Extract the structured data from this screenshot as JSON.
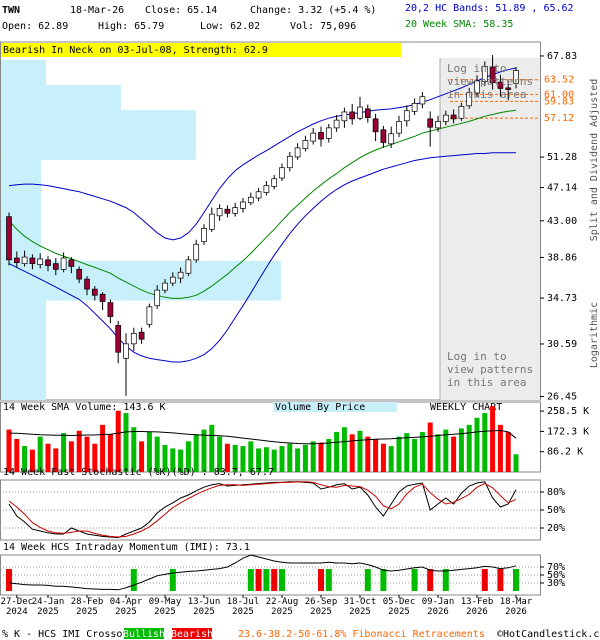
{
  "header": {
    "symbol": "TWN",
    "date": "18-Mar-26",
    "close": "Close: 65.14",
    "change": "Change: 3.32 (+5.4 %)",
    "open": "Open: 62.89",
    "high": "High: 65.79",
    "low": "Low: 62.02",
    "volume": "Vol: 75,096"
  },
  "footer": {
    "copyright": "©HotCandlestick.com"
  },
  "chart_data": [
    {
      "type": "candlestick",
      "title": "Bearish In Neck on 03-Jul-08, Strength: 62.9",
      "legend": [
        {
          "text": "20,2 HC Bands: 51.89 , 65.62",
          "color": "#0000cc"
        },
        {
          "text": "20 Week SMA: 58.35",
          "color": "#008800"
        }
      ],
      "notice": "Log in to\nview patterns\nin this area",
      "axis_notes": [
        "Split and Dividend Adjusted",
        "Logarithmic"
      ],
      "log": true,
      "ylim": [
        26.2,
        70.5
      ],
      "yticks": [
        67.83,
        51.28,
        47.14,
        {
          "value": 43,
          "label": "43.00"
        },
        38.86,
        34.73,
        30.59,
        26.45
      ],
      "fib_levels": [
        63.52,
        {
          "value": 61,
          "label": "61.00"
        },
        59.83,
        57.12
      ],
      "fib_color": "#ff6600",
      "fib_caption": "23.6-38.2-50-61.8% Fibonacci Retracements",
      "up_color": "#ffffff",
      "down_color": "#990033",
      "categories": [
        null,
        "27-Dec\n2024",
        null,
        null,
        null,
        "24-Jan\n2025",
        null,
        null,
        null,
        null,
        "28-Feb\n2025",
        null,
        null,
        null,
        null,
        "04-Apr\n2025",
        null,
        null,
        null,
        null,
        "09-May\n2025",
        null,
        null,
        null,
        null,
        "13-Jun\n2025",
        null,
        null,
        null,
        null,
        "18-Jul\n2025",
        null,
        null,
        null,
        null,
        "22-Aug\n2025",
        null,
        null,
        null,
        null,
        "26-Sep\n2025",
        null,
        null,
        null,
        null,
        "31-Oct\n2025",
        null,
        null,
        null,
        null,
        "05-Dec\n2025",
        null,
        null,
        null,
        null,
        "09-Jan\n2026",
        null,
        null,
        null,
        null,
        "13-Feb\n2026",
        null,
        null,
        null,
        null,
        "18-Mar\n2026"
      ],
      "open": [
        43.5,
        38.8,
        38.2,
        38.8,
        38.1,
        38.6,
        38.2,
        37.6,
        38.6,
        37.6,
        36.6,
        35.6,
        35.1,
        34.3,
        32.2,
        29.4,
        30.6,
        31.6,
        32.3,
        34.0,
        35.5,
        36.2,
        36.7,
        37.2,
        38.6,
        40.6,
        42.0,
        43.6,
        44.4,
        43.9,
        44.5,
        45.2,
        45.8,
        46.5,
        47.3,
        48.4,
        49.8,
        51.3,
        52.5,
        53.6,
        54.9,
        54.0,
        55.6,
        56.7,
        58.1,
        57.1,
        58.6,
        57.0,
        55.3,
        53.2,
        54.8,
        56.7,
        58.2,
        59.4,
        57.0,
        55.6,
        56.6,
        57.6,
        57.1,
        59.1,
        61.2,
        63.2,
        65.8,
        63.1,
        62.1,
        62.89
      ],
      "high": [
        44.0,
        39.5,
        39.6,
        39.2,
        39.3,
        39.0,
        38.8,
        39.4,
        38.9,
        37.9,
        36.9,
        35.9,
        35.3,
        34.6,
        32.6,
        31.5,
        32.0,
        32.0,
        34.2,
        36.0,
        36.6,
        37.3,
        37.8,
        39.0,
        40.8,
        42.6,
        44.6,
        45.0,
        44.9,
        45.2,
        45.8,
        46.5,
        47.1,
        48.0,
        48.8,
        50.4,
        52.0,
        53.3,
        54.4,
        55.6,
        55.8,
        56.2,
        57.6,
        58.8,
        59.4,
        60.6,
        59.3,
        57.8,
        55.9,
        55.8,
        57.5,
        59.2,
        60.3,
        61.4,
        58.2,
        57.5,
        58.3,
        58.5,
        59.6,
        62.1,
        64.3,
        66.8,
        68.0,
        64.4,
        63.5,
        65.79
      ],
      "low": [
        38.0,
        37.8,
        37.9,
        37.6,
        37.7,
        37.4,
        37.0,
        37.3,
        37.2,
        36.2,
        35.0,
        34.5,
        33.6,
        32.4,
        29.0,
        26.5,
        30.0,
        30.6,
        32.0,
        33.7,
        35.2,
        35.9,
        36.2,
        36.9,
        38.3,
        40.2,
        41.7,
        43.0,
        43.4,
        43.5,
        44.0,
        44.9,
        45.4,
        46.1,
        46.9,
        48.0,
        49.3,
        50.9,
        52.1,
        53.1,
        52.8,
        53.4,
        55.0,
        55.6,
        56.1,
        56.8,
        56.4,
        53.6,
        52.6,
        52.6,
        54.2,
        55.8,
        57.6,
        58.7,
        52.8,
        55.0,
        56.0,
        56.3,
        56.7,
        58.6,
        60.5,
        62.4,
        61.8,
        60.6,
        60.0,
        62.02
      ],
      "close": [
        38.6,
        38.3,
        38.9,
        38.2,
        38.7,
        38.0,
        37.6,
        38.8,
        37.9,
        36.6,
        35.6,
        35.0,
        34.4,
        33.0,
        29.9,
        30.6,
        31.5,
        31.0,
        33.9,
        35.5,
        36.2,
        36.8,
        37.3,
        38.6,
        40.3,
        42.1,
        43.8,
        44.5,
        43.9,
        44.6,
        45.3,
        45.9,
        46.6,
        47.4,
        48.3,
        49.8,
        51.4,
        52.6,
        53.7,
        54.8,
        53.9,
        55.6,
        56.8,
        58.1,
        57.0,
        58.9,
        57.2,
        55.0,
        53.4,
        54.7,
        56.6,
        58.3,
        59.5,
        60.6,
        55.7,
        56.6,
        57.6,
        57.0,
        59.0,
        61.3,
        63.3,
        65.9,
        63.0,
        62.0,
        61.82,
        65.14
      ],
      "overlays": [
        {
          "color": "#0000cc",
          "values": [
            47.4,
            47.5,
            47.6,
            47.6,
            47.5,
            47.4,
            47.2,
            47.0,
            46.8,
            46.6,
            46.3,
            46.0,
            45.7,
            45.4,
            45.0,
            44.6,
            44.0,
            43.2,
            42.4,
            41.6,
            41.0,
            40.8,
            41.0,
            41.6,
            42.6,
            44.0,
            45.5,
            47.0,
            48.3,
            49.4,
            50.2,
            50.9,
            51.6,
            52.2,
            52.9,
            53.6,
            54.3,
            55.0,
            55.6,
            56.2,
            56.7,
            57.1,
            57.4,
            57.6,
            57.8,
            58.0,
            58.2,
            58.4,
            58.5,
            58.6,
            58.8,
            59.0,
            59.3,
            59.7,
            60.1,
            60.6,
            61.1,
            61.6,
            62.1,
            62.7,
            63.3,
            63.9,
            64.4,
            64.9,
            65.3,
            65.62
          ]
        },
        {
          "color": "#0000cc",
          "values": [
            38.2,
            37.8,
            37.4,
            37.0,
            36.6,
            36.2,
            35.8,
            35.4,
            35.0,
            34.6,
            34.0,
            33.3,
            32.6,
            31.9,
            31.1,
            30.4,
            29.9,
            29.6,
            29.4,
            29.3,
            29.2,
            29.1,
            29.1,
            29.2,
            29.4,
            29.7,
            30.2,
            30.9,
            31.8,
            32.9,
            34.0,
            35.2,
            36.5,
            37.8,
            39.1,
            40.3,
            41.5,
            42.6,
            43.6,
            44.5,
            45.4,
            46.2,
            46.9,
            47.5,
            48.0,
            48.4,
            48.8,
            49.2,
            49.6,
            49.9,
            50.2,
            50.5,
            50.8,
            51.0,
            51.2,
            51.3,
            51.4,
            51.5,
            51.6,
            51.7,
            51.8,
            51.8,
            51.9,
            51.9,
            51.9,
            51.89
          ]
        },
        {
          "color": "#008800",
          "values": [
            43.0,
            42.0,
            41.2,
            40.6,
            40.1,
            39.7,
            39.3,
            39.0,
            38.7,
            38.4,
            38.1,
            37.8,
            37.5,
            37.2,
            36.7,
            36.3,
            35.9,
            35.5,
            35.2,
            35.0,
            34.8,
            34.7,
            34.7,
            34.8,
            35.0,
            35.4,
            35.9,
            36.5,
            37.1,
            37.8,
            38.5,
            39.3,
            40.2,
            41.1,
            42.0,
            43.0,
            44.0,
            44.9,
            45.8,
            46.7,
            47.5,
            48.3,
            49.0,
            49.8,
            50.5,
            51.2,
            51.8,
            52.3,
            52.7,
            53.1,
            53.5,
            53.9,
            54.3,
            54.8,
            55.1,
            55.4,
            55.7,
            56.0,
            56.3,
            56.6,
            57.0,
            57.4,
            57.7,
            58.0,
            58.2,
            58.35
          ]
        }
      ],
      "volume_by_price": {
        "color": "#c8f0fa",
        "bins": [
          26.2,
          34.5,
          38.5,
          50.9,
          58.4,
          62.6,
          67.1
        ],
        "values": [
          45,
          280,
          40,
          195,
          120,
          45
        ]
      }
    },
    {
      "type": "bar",
      "title": "14 Week SMA Volume: 143.6 K",
      "annotations": [
        "Volume By Price",
        "WEEKLY CHART"
      ],
      "ylim": [
        0,
        297000
      ],
      "yticks": [
        {
          "value": 258500,
          "label": "258.5 K"
        },
        {
          "value": 172300,
          "label": "172.3 K"
        },
        {
          "value": 86200,
          "label": "86.2 K"
        }
      ],
      "up_color": "#00bb00",
      "down_color": "#ff0000",
      "values": [
        180000,
        140000,
        110000,
        95000,
        150000,
        120000,
        100000,
        165000,
        130000,
        175000,
        150000,
        120000,
        200000,
        160000,
        260000,
        250000,
        190000,
        130000,
        170000,
        150000,
        115000,
        100000,
        95000,
        130000,
        160000,
        180000,
        200000,
        150000,
        120000,
        115000,
        110000,
        130000,
        100000,
        105000,
        95000,
        110000,
        120000,
        100000,
        115000,
        130000,
        125000,
        140000,
        170000,
        190000,
        160000,
        175000,
        150000,
        140000,
        120000,
        110000,
        150000,
        165000,
        140000,
        170000,
        210000,
        160000,
        180000,
        150000,
        185000,
        200000,
        230000,
        250000,
        280000,
        200000,
        170000,
        75096
      ],
      "sma": {
        "color": "#000000",
        "values": [
          165000,
          164000,
          162000,
          160000,
          158000,
          157000,
          156000,
          156000,
          155000,
          156000,
          157000,
          157000,
          159000,
          160000,
          165000,
          170000,
          172000,
          172000,
          171000,
          170000,
          168000,
          166000,
          163000,
          160000,
          158000,
          156000,
          155000,
          154000,
          152000,
          148000,
          144000,
          140000,
          136000,
          132000,
          128000,
          125000,
          123000,
          121000,
          120000,
          120000,
          121000,
          123000,
          126000,
          129000,
          132000,
          135000,
          137000,
          139000,
          140000,
          141000,
          143000,
          145000,
          147000,
          149000,
          152000,
          155000,
          158000,
          160000,
          163000,
          166000,
          170000,
          173000,
          175000,
          176000,
          170000,
          143600
        ]
      }
    },
    {
      "type": "line",
      "title": "14 Week Fast Stochastic (%K)(%D) : 83.7, 67.7",
      "ylim": [
        0,
        100
      ],
      "yticks": [
        {
          "value": 80,
          "label": "80%"
        },
        {
          "value": 50,
          "label": "50%"
        },
        {
          "value": 20,
          "label": "20%"
        }
      ],
      "grid": true,
      "series": [
        {
          "color": "#000000",
          "values": [
            60,
            40,
            30,
            18,
            15,
            12,
            10,
            10,
            20,
            15,
            10,
            8,
            6,
            5,
            4,
            10,
            15,
            20,
            30,
            45,
            55,
            62,
            70,
            75,
            82,
            88,
            92,
            94,
            90,
            91,
            92,
            93,
            94,
            95,
            96,
            96,
            97,
            97,
            96,
            95,
            85,
            88,
            92,
            94,
            85,
            88,
            75,
            55,
            40,
            60,
            80,
            90,
            93,
            95,
            50,
            60,
            70,
            60,
            78,
            90,
            95,
            97,
            70,
            55,
            60,
            83.7
          ]
        },
        {
          "color": "#cc0000",
          "values": [
            65,
            55,
            43,
            29,
            21,
            15,
            12,
            11,
            13,
            15,
            15,
            11,
            8,
            6,
            5,
            6,
            10,
            15,
            22,
            32,
            43,
            54,
            62,
            69,
            76,
            82,
            87,
            91,
            92,
            92,
            91,
            92,
            93,
            94,
            95,
            96,
            96,
            97,
            97,
            96,
            92,
            89,
            88,
            91,
            90,
            89,
            83,
            73,
            57,
            52,
            60,
            77,
            88,
            93,
            79,
            68,
            60,
            63,
            69,
            76,
            88,
            94,
            87,
            74,
            62,
            67.7
          ]
        }
      ]
    },
    {
      "type": "line",
      "title": "14 Week HCS Intraday Momentum (IMI): 73.1",
      "ylim": [
        0,
        100
      ],
      "yticks": [
        {
          "value": 70,
          "label": "70%"
        },
        {
          "value": 50,
          "label": "50%"
        },
        {
          "value": 30,
          "label": "30%"
        }
      ],
      "grid": true,
      "series": [
        {
          "color": "#000000",
          "values": [
            30,
            28,
            26,
            25,
            25,
            24,
            22,
            22,
            20,
            18,
            16,
            15,
            14,
            14,
            13,
            18,
            25,
            32,
            40,
            48,
            52,
            55,
            57,
            59,
            60,
            62,
            64,
            66,
            70,
            80,
            92,
            100,
            95,
            90,
            85,
            82,
            80,
            80,
            80,
            80,
            80,
            82,
            80,
            80,
            78,
            80,
            76,
            70,
            62,
            60,
            62,
            65,
            68,
            70,
            62,
            60,
            60,
            62,
            64,
            66,
            68,
            72,
            70,
            66,
            68,
            73.1
          ]
        }
      ],
      "crossover_legend": {
        "label": "% K - HCS IMI Crossover:",
        "items": [
          {
            "text": "Bullish",
            "color": "#00bb00"
          },
          {
            "text": "Bearish",
            "color": "#ee0000"
          }
        ]
      },
      "crossovers": [
        "Bearish",
        null,
        null,
        null,
        null,
        null,
        null,
        null,
        null,
        null,
        null,
        null,
        null,
        null,
        null,
        null,
        "Bullish",
        null,
        null,
        null,
        null,
        "Bullish",
        null,
        null,
        null,
        null,
        null,
        null,
        null,
        null,
        null,
        "Bullish",
        "Bearish",
        "Bullish",
        "Bearish",
        "Bullish",
        null,
        null,
        null,
        null,
        "Bearish",
        "Bullish",
        null,
        null,
        null,
        null,
        "Bullish",
        null,
        "Bullish",
        null,
        null,
        null,
        "Bullish",
        null,
        "Bearish",
        null,
        "Bullish",
        null,
        null,
        null,
        null,
        "Bearish",
        null,
        "Bearish",
        null,
        "Bullish"
      ]
    }
  ]
}
